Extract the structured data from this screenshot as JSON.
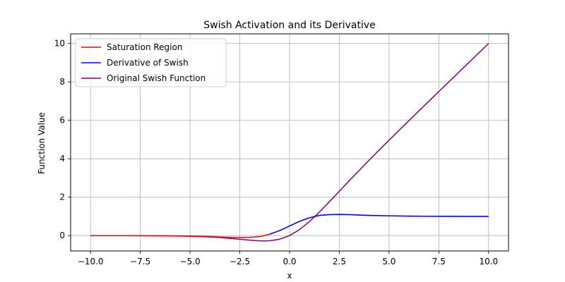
{
  "chart_data": {
    "type": "line",
    "title": "Swish Activation and its Derivative",
    "xlabel": "x",
    "ylabel": "Function Value",
    "xlim": [
      -11.0,
      11.0
    ],
    "ylim": [
      -0.8,
      10.5
    ],
    "xticks": [
      -10,
      -7.5,
      -5,
      -2.5,
      0,
      2.5,
      5,
      7.5,
      10
    ],
    "xtick_labels": [
      "−10.0",
      "−7.5",
      "−5.0",
      "−2.5",
      "0.0",
      "2.5",
      "5.0",
      "7.5",
      "10.0"
    ],
    "yticks": [
      0,
      2,
      4,
      6,
      8,
      10
    ],
    "ytick_labels": [
      "0",
      "2",
      "4",
      "6",
      "8",
      "10"
    ],
    "grid": true,
    "legend_position": "top-left",
    "series": [
      {
        "name": "Saturation Region",
        "color": "#ff0000",
        "x": [
          -10,
          -9,
          -8,
          -7,
          -6,
          -5,
          -4.5,
          -4,
          -3.5,
          -3,
          -2.5,
          -2,
          -1.5,
          -1
        ],
        "y": [
          0.0,
          0.0,
          -0.003,
          -0.006,
          -0.012,
          -0.02,
          -0.033,
          -0.05,
          -0.07,
          -0.088,
          -0.098,
          -0.091,
          -0.052,
          0.072
        ]
      },
      {
        "name": "Derivative of Swish",
        "color": "#0000ff",
        "x": [
          -1,
          -0.5,
          0,
          0.5,
          1,
          1.5,
          2,
          2.5,
          3,
          3.5,
          4,
          5,
          6,
          7,
          8,
          9,
          10
        ],
        "y": [
          0.072,
          0.26,
          0.5,
          0.74,
          0.93,
          1.05,
          1.09,
          1.1,
          1.09,
          1.07,
          1.05,
          1.03,
          1.015,
          1.007,
          1.003,
          1.001,
          1.0
        ]
      },
      {
        "name": "Original Swish Function",
        "color": "#800080",
        "x": [
          -10,
          -9,
          -8,
          -7,
          -6,
          -5,
          -4,
          -3.5,
          -3,
          -2.5,
          -2,
          -1.5,
          -1.25,
          -1,
          -0.5,
          0,
          0.5,
          1,
          1.5,
          2,
          2.5,
          3,
          4,
          5,
          6,
          7,
          8,
          9,
          10
        ],
        "y": [
          -0.0005,
          -0.001,
          -0.003,
          -0.006,
          -0.015,
          -0.033,
          -0.072,
          -0.1,
          -0.142,
          -0.19,
          -0.238,
          -0.274,
          -0.279,
          -0.269,
          -0.189,
          0.0,
          0.311,
          0.731,
          1.226,
          1.762,
          2.31,
          2.857,
          3.928,
          4.967,
          5.985,
          6.994,
          7.997,
          8.999,
          10.0
        ]
      }
    ]
  }
}
